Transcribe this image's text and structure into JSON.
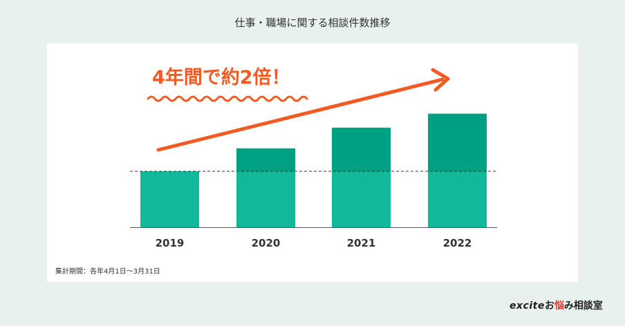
{
  "page_title": "仕事・職場に関する相談件数推移",
  "headline": "4年間で約2倍！",
  "footnote": "集計期間：各年4月1日〜3月31日",
  "brand": {
    "excite": "excite",
    "text_pre": "お",
    "text_accent": "悩",
    "text_post": "み相談室"
  },
  "colors": {
    "background": "#e8f1ee",
    "bar_base": "#12b89a",
    "bar_increase": "#00a082",
    "accent": "#f15a22"
  },
  "chart_data": {
    "type": "bar",
    "title": "仕事・職場に関する相談件数推移",
    "xlabel": "",
    "ylabel": "",
    "categories": [
      "2019",
      "2020",
      "2021",
      "2022"
    ],
    "values": [
      1.0,
      1.41,
      1.78,
      2.03
    ],
    "baseline_value": 1.0,
    "ylim": [
      0,
      2.03
    ],
    "grid": false,
    "legend": "none",
    "annotation": "4年間で約2倍！"
  }
}
